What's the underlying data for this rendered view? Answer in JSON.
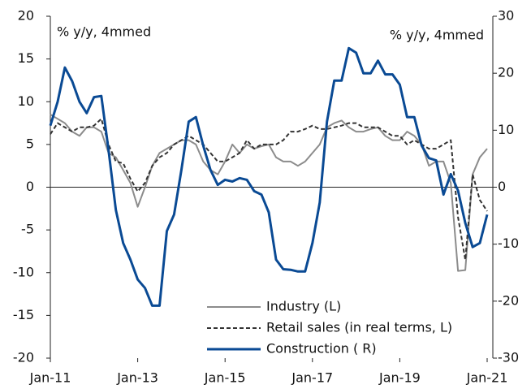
{
  "chart_data": {
    "type": "line",
    "annotations": [
      "% y/y, 4mmed",
      "% y/y, 4mmed"
    ],
    "categories": [
      "Jan-11",
      null,
      null,
      null,
      null,
      null,
      null,
      null,
      null,
      null,
      null,
      null,
      "Jan-13",
      null,
      null,
      null,
      null,
      null,
      null,
      null,
      null,
      null,
      null,
      null,
      "Jan-15",
      null,
      null,
      null,
      null,
      null,
      null,
      null,
      null,
      null,
      null,
      null,
      "Jan-17",
      null,
      null,
      null,
      null,
      null,
      null,
      null,
      null,
      null,
      null,
      null,
      "Jan-19",
      null,
      null,
      null,
      null,
      null,
      null,
      null,
      null,
      null,
      null,
      null,
      "Jan-21"
    ],
    "series": [
      {
        "name": "Industry (L)",
        "color": "#8c8c8c",
        "dash": false,
        "axis": "y",
        "values": [
          8.5,
          8,
          7.5,
          6.5,
          6,
          7,
          7,
          6.5,
          4,
          3.5,
          2,
          0.5,
          -2.3,
          0,
          2.5,
          4,
          4.5,
          5,
          5.5,
          5.5,
          5,
          3,
          2,
          1.5,
          3,
          5,
          4,
          5,
          4.5,
          4.8,
          5,
          3.5,
          3,
          3,
          2.5,
          3,
          4,
          5,
          7,
          7.5,
          7.8,
          7,
          6.5,
          6.5,
          6.8,
          7,
          6,
          5.5,
          5.5,
          6.5,
          6,
          5,
          2.5,
          3,
          3,
          0.5,
          -9.8,
          -9.7,
          1.5,
          3.5,
          4.5
        ]
      },
      {
        "name": "Retail sales (in real terms, L)",
        "color": "#333333",
        "dash": true,
        "axis": "y",
        "values": [
          6.2,
          7.5,
          7,
          6.5,
          7,
          7,
          7.2,
          8,
          5,
          3,
          2.8,
          1,
          -0.5,
          0.5,
          2.5,
          3.5,
          4,
          5,
          5.5,
          6,
          5.5,
          5,
          4,
          3,
          3,
          3.5,
          4,
          5.5,
          4.5,
          5,
          5,
          5,
          5.5,
          6.5,
          6.5,
          6.8,
          7.2,
          6.8,
          6.8,
          7,
          7.2,
          7.5,
          7.5,
          7,
          7,
          7,
          6.5,
          6,
          6,
          5,
          5.5,
          5,
          4.5,
          4.5,
          5,
          5.5,
          -3.5,
          -8.5,
          1.5,
          -1.5,
          -2.8
        ]
      },
      {
        "name": "Construction ( R)",
        "color": "#0a4a94",
        "dash": false,
        "axis": "y2",
        "values": [
          10.8,
          15,
          21,
          18.6,
          15,
          13,
          15.8,
          16,
          6.5,
          -4,
          -9.8,
          -12.7,
          -16.2,
          -17.7,
          -20.8,
          -20.8,
          -7.7,
          -4.8,
          3,
          11.5,
          12.3,
          7.3,
          3,
          0.4,
          1.3,
          1,
          1.6,
          1.3,
          -0.7,
          -1.3,
          -4.4,
          -12.7,
          -14.4,
          -14.5,
          -14.8,
          -14.8,
          -9.8,
          -2.7,
          11.5,
          18.7,
          18.7,
          24.4,
          23.6,
          20,
          20,
          22.2,
          19.8,
          19.8,
          18,
          12.3,
          12.3,
          7.3,
          5.1,
          4.7,
          -1.3,
          2.3,
          -0.6,
          -6.3,
          -10.5,
          -9.8,
          -4.8
        ]
      }
    ],
    "ylim": [
      -20,
      20
    ],
    "yticks": [
      -20,
      -15,
      -10,
      -5,
      0,
      5,
      10,
      15,
      20
    ],
    "y2lim": [
      -30,
      30
    ],
    "y2ticks": [
      -30,
      -20,
      -10,
      0,
      10,
      20,
      30
    ],
    "legend": "bottom-center"
  }
}
